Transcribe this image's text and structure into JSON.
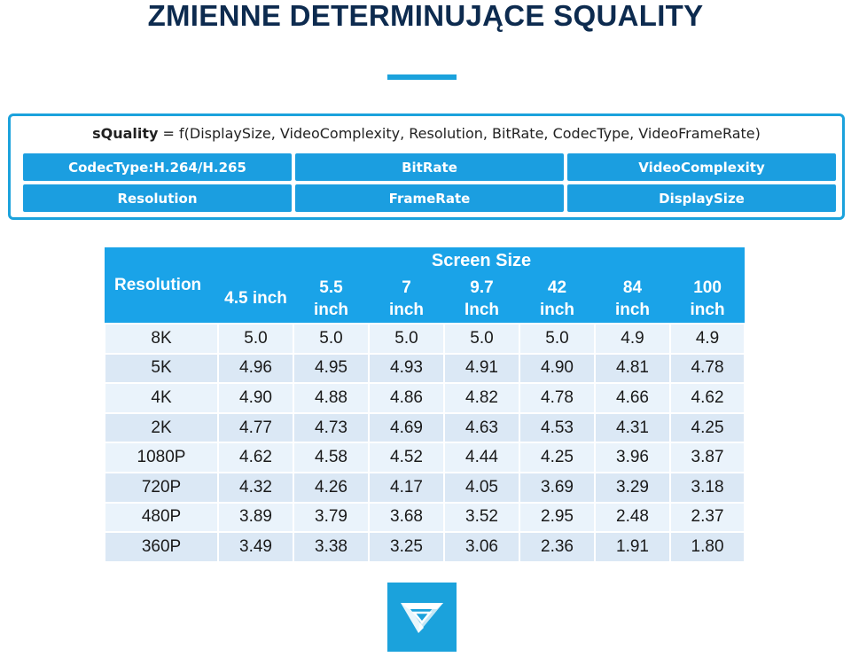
{
  "title": "ZMIENNE DETERMINUJĄCE SQUALITY",
  "formula": {
    "lhs": "sQuality",
    "rhs": " = f(DisplaySize, VideoComplexity, Resolution, BitRate, CodecType, VideoFrameRate)"
  },
  "variables": [
    "CodecType:H.264/H.265",
    "BitRate",
    "VideoComplexity",
    "Resolution",
    "FrameRate",
    "DisplaySize"
  ],
  "table": {
    "header_group": "Screen Size",
    "row_header": "Resolution",
    "columns": [
      [
        "4.5 inch"
      ],
      [
        "5.5",
        "inch"
      ],
      [
        "7",
        "inch"
      ],
      [
        "9.7",
        "Inch"
      ],
      [
        "42",
        "inch"
      ],
      [
        "84",
        "inch"
      ],
      [
        "100",
        "inch"
      ]
    ],
    "rows": [
      {
        "label": "8K",
        "values": [
          "5.0",
          "5.0",
          "5.0",
          "5.0",
          "5.0",
          "4.9",
          "4.9"
        ]
      },
      {
        "label": "5K",
        "values": [
          "4.96",
          "4.95",
          "4.93",
          "4.91",
          "4.90",
          "4.81",
          "4.78"
        ]
      },
      {
        "label": "4K",
        "values": [
          "4.90",
          "4.88",
          "4.86",
          "4.82",
          "4.78",
          "4.66",
          "4.62"
        ]
      },
      {
        "label": "2K",
        "values": [
          "4.77",
          "4.73",
          "4.69",
          "4.63",
          "4.53",
          "4.31",
          "4.25"
        ]
      },
      {
        "label": "1080P",
        "values": [
          "4.62",
          "4.58",
          "4.52",
          "4.44",
          "4.25",
          "3.96",
          "3.87"
        ]
      },
      {
        "label": "720P",
        "values": [
          "4.32",
          "4.26",
          "4.17",
          "4.05",
          "3.69",
          "3.29",
          "3.18"
        ]
      },
      {
        "label": "480P",
        "values": [
          "3.89",
          "3.79",
          "3.68",
          "3.52",
          "2.95",
          "2.48",
          "2.37"
        ]
      },
      {
        "label": "360P",
        "values": [
          "3.49",
          "3.38",
          "3.25",
          "3.06",
          "2.36",
          "1.91",
          "1.80"
        ]
      }
    ]
  },
  "colors": {
    "accent": "#1ba2dc",
    "table_header": "#1aa3e8",
    "row_light": "#eaf3fb",
    "row_dark": "#dbe8f5",
    "title": "#0d2b4f"
  },
  "logo_icon": "brand-logo-icon"
}
